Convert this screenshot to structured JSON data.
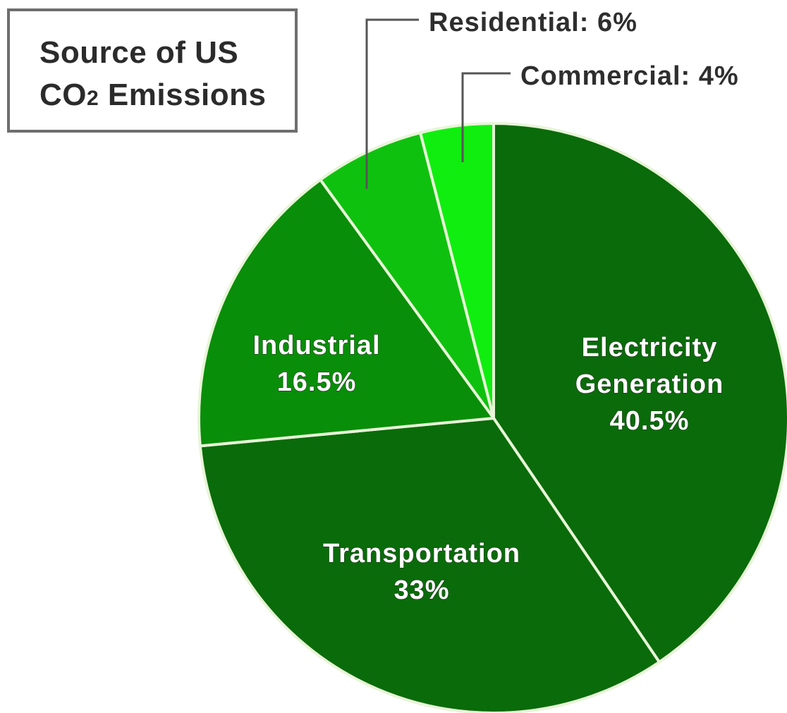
{
  "title": {
    "line1": "Source of US",
    "line2_prefix": "CO",
    "line2_sub": "2",
    "line2_suffix": " Emissions"
  },
  "chart_data": {
    "type": "pie",
    "title": "Source of US CO2 Emissions",
    "start_angle_deg": 0,
    "direction": "clockwise",
    "slices": [
      {
        "label": "Electricity Generation",
        "label_lines": [
          "Electricity",
          "Generation"
        ],
        "value_text": "40.5%",
        "value": 40.5,
        "color": "#0a6b0a",
        "label_mode": "inside"
      },
      {
        "label": "Transportation",
        "label_lines": [
          "Transportation"
        ],
        "value_text": "33%",
        "value": 33,
        "color": "#0a6b0a",
        "label_mode": "inside"
      },
      {
        "label": "Industrial",
        "label_lines": [
          "Industrial"
        ],
        "value_text": "16.5%",
        "value": 16.5,
        "color": "#098e09",
        "label_mode": "inside"
      },
      {
        "label": "Residential",
        "label_lines": [
          "Residential: 6%"
        ],
        "value_text": "6%",
        "value": 6,
        "color": "#0fc10f",
        "label_mode": "callout"
      },
      {
        "label": "Commercial",
        "label_lines": [
          "Commercial: 4%"
        ],
        "value_text": "4%",
        "value": 4,
        "color": "#10ee10",
        "label_mode": "callout"
      }
    ],
    "legend": "none"
  }
}
